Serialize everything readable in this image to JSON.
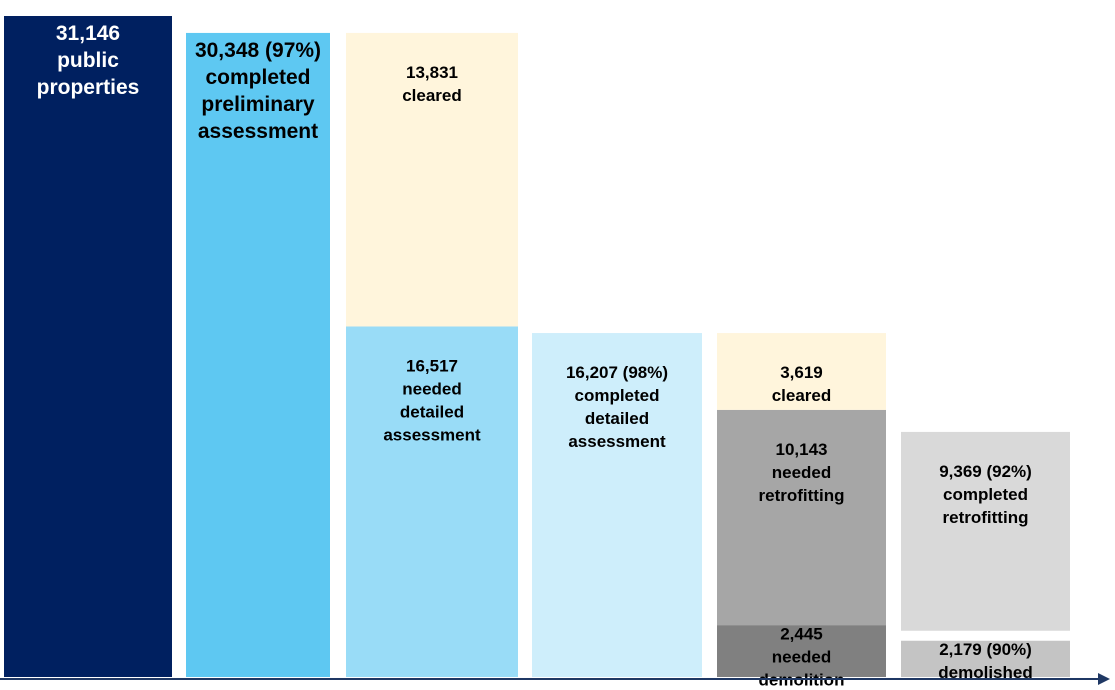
{
  "chart_data": {
    "type": "bar",
    "subtype": "stacked-waterfall",
    "title": "",
    "xlabel": "",
    "ylabel": "",
    "ylim": [
      0,
      31146
    ],
    "grid": false,
    "legend": "none",
    "bars": [
      {
        "id": "total",
        "segments": [
          {
            "value": 31146,
            "lines": [
              "31,146",
              "public",
              "properties"
            ],
            "fill": "#002060",
            "text_color": "#ffffff",
            "big": true
          }
        ]
      },
      {
        "id": "preliminary",
        "segments": [
          {
            "value": 30348,
            "lines": [
              "30,348 (97%)",
              "completed",
              "preliminary",
              "assessment"
            ],
            "fill": "#5ec8f2",
            "text_color": "#000000",
            "big": true
          }
        ]
      },
      {
        "id": "preliminary-outcome",
        "segments": [
          {
            "value": 16517,
            "lines": [
              "16,517",
              "needed",
              "detailed",
              "assessment"
            ],
            "fill": "#99dcf7",
            "text_color": "#000000"
          },
          {
            "value": 13831,
            "lines": [
              "13,831",
              "cleared"
            ],
            "fill": "#fff5dc",
            "text_color": "#000000"
          }
        ]
      },
      {
        "id": "detailed",
        "segments": [
          {
            "value": 16207,
            "lines": [
              "16,207 (98%)",
              "completed",
              "detailed",
              "assessment"
            ],
            "fill": "#ceeefb",
            "text_color": "#000000"
          }
        ]
      },
      {
        "id": "detailed-outcome",
        "segments": [
          {
            "value": 2445,
            "lines": [
              "2,445",
              "needed",
              "demolition"
            ],
            "fill": "#808080",
            "text_color": "#000000"
          },
          {
            "value": 10143,
            "lines": [
              "10,143",
              "needed",
              "retrofitting"
            ],
            "fill": "#a6a6a6",
            "text_color": "#000000"
          },
          {
            "value": 3619,
            "lines": [
              "3,619",
              "cleared"
            ],
            "fill": "#fff5dc",
            "text_color": "#000000"
          }
        ]
      },
      {
        "id": "completion",
        "segments": [
          {
            "value": 2179,
            "lines": [
              "2,179 (90%)",
              "demolished"
            ],
            "fill": "#c4c4c4",
            "text_color": "#000000",
            "gap_above": true
          },
          {
            "value": 9369,
            "lines": [
              "9,369 (92%)",
              "completed",
              "retrofitting"
            ],
            "fill": "#d9d9d9",
            "text_color": "#000000"
          }
        ]
      }
    ],
    "axis_color": "#1f3864"
  }
}
